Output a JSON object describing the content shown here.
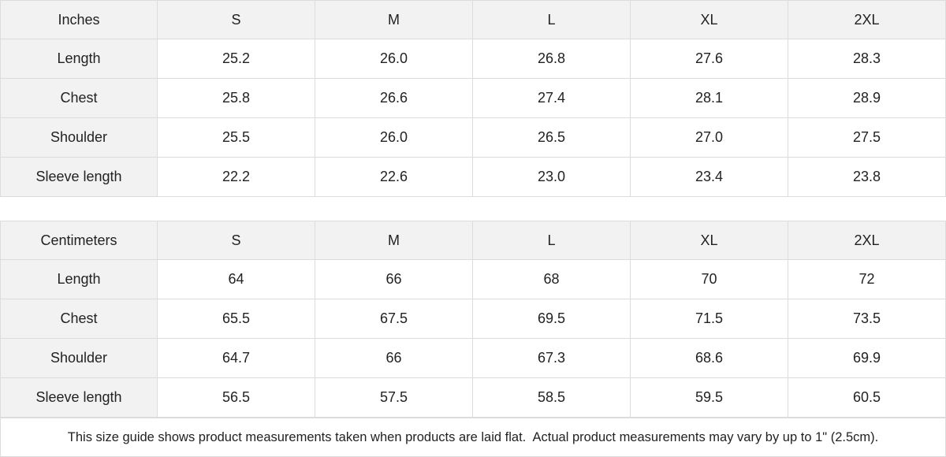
{
  "tables": [
    {
      "header": [
        "Inches",
        "S",
        "M",
        "L",
        "XL",
        "2XL"
      ],
      "rows": [
        [
          "Length",
          "25.2",
          "26.0",
          "26.8",
          "27.6",
          "28.3"
        ],
        [
          "Chest",
          "25.8",
          "26.6",
          "27.4",
          "28.1",
          "28.9"
        ],
        [
          "Shoulder",
          "25.5",
          "26.0",
          "26.5",
          "27.0",
          "27.5"
        ],
        [
          "Sleeve length",
          "22.2",
          "22.6",
          "23.0",
          "23.4",
          "23.8"
        ]
      ]
    },
    {
      "header": [
        "Centimeters",
        "S",
        "M",
        "L",
        "XL",
        "2XL"
      ],
      "rows": [
        [
          "Length",
          "64",
          "66",
          "68",
          "70",
          "72"
        ],
        [
          "Chest",
          "65.5",
          "67.5",
          "69.5",
          "71.5",
          "73.5"
        ],
        [
          "Shoulder",
          "64.7",
          "66",
          "67.3",
          "68.6",
          "69.9"
        ],
        [
          "Sleeve length",
          "56.5",
          "57.5",
          "58.5",
          "59.5",
          "60.5"
        ]
      ]
    }
  ],
  "note": "This size guide shows product measurements taken when products are laid flat.  Actual product measurements may vary by up to 1\" (2.5cm)."
}
